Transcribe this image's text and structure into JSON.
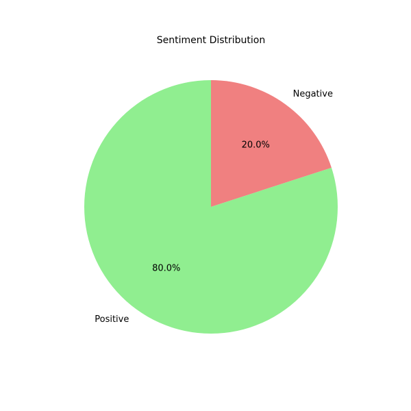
{
  "chart_data": {
    "type": "pie",
    "title": "Sentiment Distribution",
    "categories": [
      "Negative",
      "Positive"
    ],
    "values": [
      20.0,
      80.0
    ],
    "percent_labels": [
      "20.0%",
      "80.0%"
    ],
    "colors": [
      "#f08080",
      "#90ee90"
    ],
    "start_angle_deg": 90,
    "direction": "clockwise",
    "legend": "none"
  }
}
